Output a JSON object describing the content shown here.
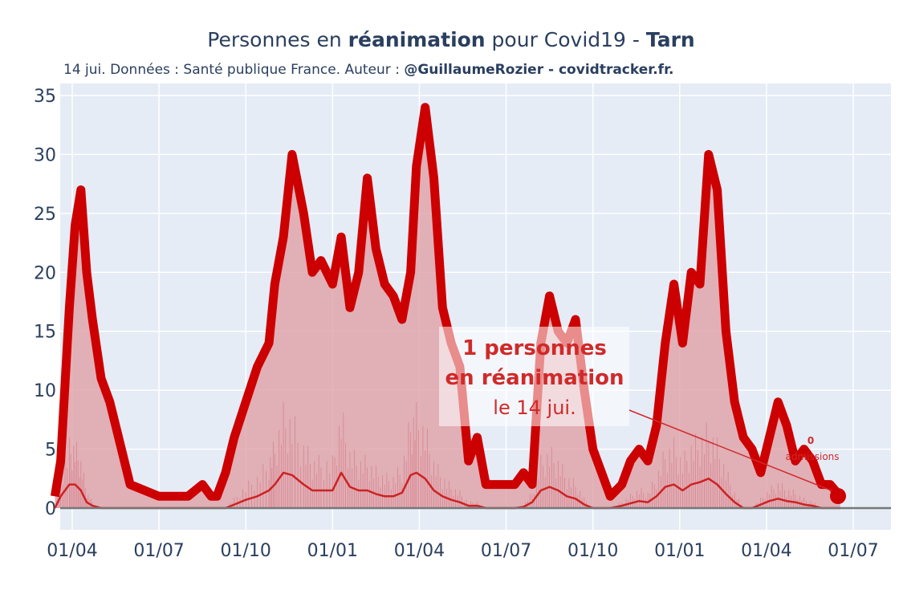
{
  "chart_data": {
    "type": "area",
    "title": {
      "prefix": "Personnes en ",
      "bold1": "réanimation",
      "middle": " pour Covid19 - ",
      "bold2": "Tarn"
    },
    "subtitle": {
      "plain": "14 jui. Données : Santé publique France. Auteur : ",
      "bold": "@GuillaumeRozier - covidtracker.fr."
    },
    "ylim": [
      0,
      35
    ],
    "xlim_months": [
      -0.6,
      15.25
    ],
    "y_ticks": [
      0,
      5,
      10,
      15,
      20,
      25,
      30,
      35
    ],
    "x_ticks": [
      {
        "m": 0,
        "label": "01/04"
      },
      {
        "m": 3,
        "label": "01/07"
      },
      {
        "m": 6,
        "label": "01/10"
      },
      {
        "m": 9,
        "label": "01/01"
      },
      {
        "m": 12,
        "label": "01/04"
      },
      {
        "m": 15,
        "label": "01/07"
      },
      {
        "m": 18,
        "label": "01/10"
      },
      {
        "m": 21,
        "label": "01/01"
      },
      {
        "m": 24,
        "label": "01/04"
      },
      {
        "m": 27,
        "label": "01/07"
      }
    ],
    "x_months": [
      -0.6,
      -0.4,
      -0.1,
      0.1,
      0.3,
      0.5,
      0.7,
      1.0,
      1.3,
      1.7,
      2.0,
      3.0,
      4.0,
      4.5,
      4.8,
      5.0,
      5.3,
      5.6,
      6.0,
      6.4,
      6.8,
      7.0,
      7.3,
      7.6,
      8.0,
      8.3,
      8.6,
      9.0,
      9.3,
      9.6,
      9.9,
      10.2,
      10.5,
      10.8,
      11.1,
      11.4,
      11.7,
      11.9,
      12.2,
      12.5,
      12.8,
      13.1,
      13.4,
      13.7,
      14.0,
      14.3,
      14.6,
      14.9,
      15.0
    ],
    "x_months_b": [
      15.0,
      15.3,
      15.6,
      15.9,
      16.2,
      16.5,
      16.8,
      17.1,
      17.4,
      17.7,
      18.0,
      18.3,
      18.6,
      19.0,
      19.3,
      19.6,
      19.9,
      20.2,
      20.5,
      20.8,
      21.1,
      21.4,
      21.7,
      22.0,
      22.3,
      22.6,
      22.9,
      23.2,
      23.5,
      23.8,
      24.1,
      24.4,
      24.7,
      25.0,
      25.3,
      25.6,
      25.9,
      26.2,
      26.55
    ],
    "series": [
      {
        "name": "",
        "values": [
          1,
          4,
          17,
          24,
          27,
          20,
          16,
          11,
          9,
          5,
          2,
          1,
          1,
          2,
          1,
          1,
          3,
          6,
          9,
          12,
          14,
          19,
          23,
          30,
          25,
          20,
          21,
          19,
          23,
          17,
          20,
          28,
          22,
          19,
          18,
          16,
          20,
          29,
          34,
          28,
          17,
          14,
          12,
          4,
          6,
          2,
          2,
          2,
          2
        ],
        "values_b": [
          2,
          2,
          3,
          2,
          14,
          18,
          15,
          14,
          16,
          10,
          5,
          3,
          1,
          2,
          4,
          5,
          4,
          7,
          14,
          19,
          14,
          20,
          19,
          30,
          27,
          15,
          9,
          6,
          5,
          3,
          6,
          9,
          7,
          4,
          5,
          4,
          2,
          2,
          1
        ]
      },
      {
        "name": "",
        "values": [
          0,
          1,
          2,
          2,
          1.5,
          0.5,
          0.2,
          0,
          0,
          0,
          0,
          0,
          0,
          0,
          0,
          0,
          0,
          0.3,
          0.7,
          1,
          1.5,
          2,
          3,
          2.8,
          2,
          1.5,
          1.5,
          1.5,
          3,
          1.8,
          1.5,
          1.5,
          1.2,
          1,
          1,
          1.3,
          2.8,
          3,
          2.5,
          1.5,
          1,
          0.7,
          0.5,
          0.2,
          0.2,
          0,
          0,
          0,
          0
        ],
        "values_b": [
          0,
          0,
          0.1,
          0.5,
          1.5,
          1.8,
          1.5,
          1,
          0.8,
          0.3,
          0,
          0,
          0,
          0.2,
          0.4,
          0.6,
          0.5,
          1,
          1.8,
          2,
          1.5,
          2,
          2.2,
          2.5,
          2,
          1.2,
          0.5,
          0,
          0,
          0.3,
          0.6,
          0.8,
          0.6,
          0.5,
          0.3,
          0.2,
          0,
          0,
          0
        ]
      }
    ],
    "annotation": {
      "line1": "1 personnes",
      "line2": "en réanimation",
      "line3": "le 14 jui."
    },
    "annotation2": {
      "value": "0",
      "label": "admissions"
    },
    "colors": {
      "line": "#cc0000",
      "fill": "#e0a0a6",
      "background": "#e5ecf6",
      "grid": "#ffffff",
      "baseline": "#777777",
      "text": "#2a3f5f"
    }
  }
}
